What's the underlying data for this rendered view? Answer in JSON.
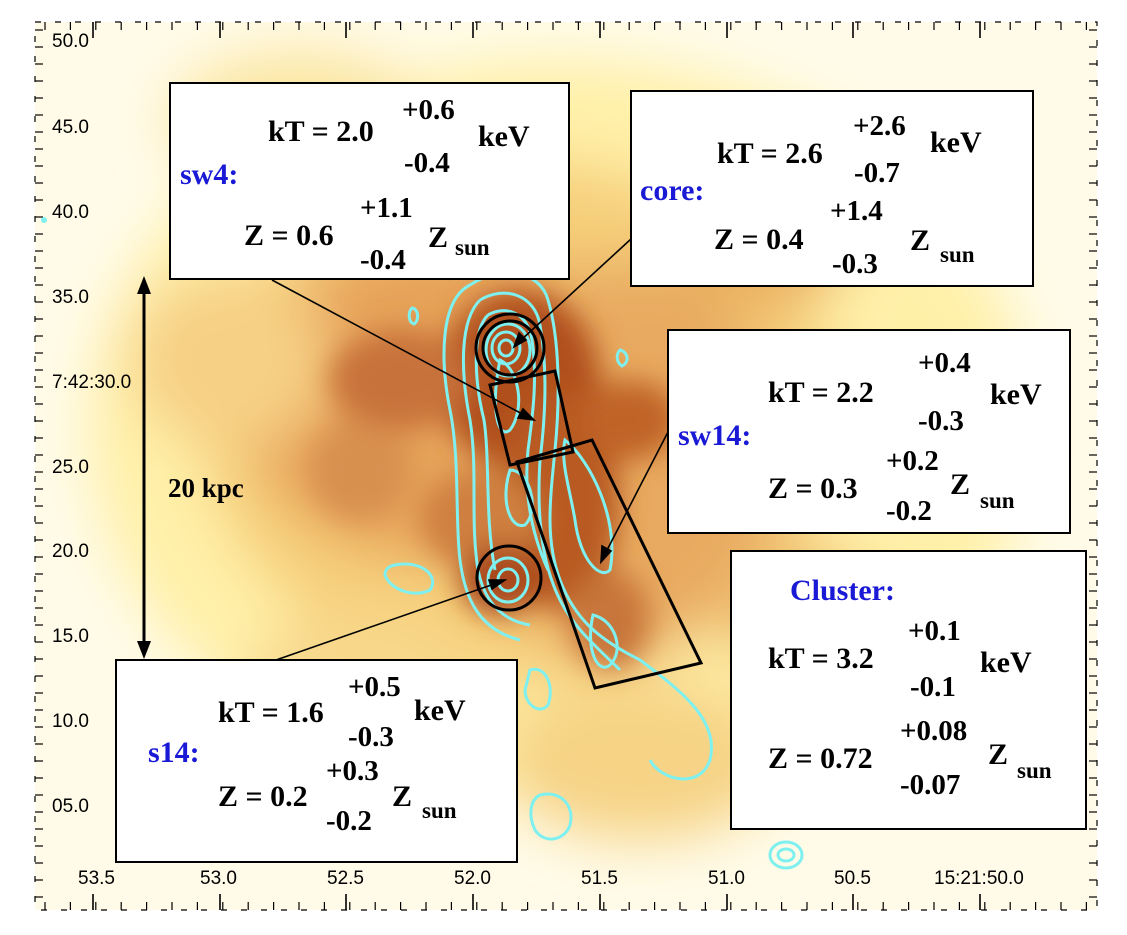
{
  "axes": {
    "y_ticks": [
      "50.0",
      "45.0",
      "40.0",
      "35.0",
      "7:42:30.0",
      "25.0",
      "20.0",
      "15.0",
      "10.0",
      "05.0"
    ],
    "x_ticks": [
      "53.5",
      "53.0",
      "52.5",
      "52.0",
      "51.5",
      "51.0",
      "50.5",
      "15:21:50.0"
    ]
  },
  "scale_bar": {
    "label": "20 kpc"
  },
  "colors": {
    "region_label": "#1a1ad6",
    "contour": "#7ff0f0",
    "frame": "#000000",
    "heat_low": "#fff2b0",
    "heat_mid": "#e8a050",
    "heat_high": "#9a3a0a"
  },
  "regions": {
    "sw4": {
      "label": "sw4:",
      "kt_prefix": "kT = 2.0",
      "kt_up": "+0.6",
      "kt_down": "-0.4",
      "kt_unit": "keV",
      "z_prefix": "Z = 0.6",
      "z_up": "+1.1",
      "z_down": "-0.4",
      "z_unit": "Z",
      "z_sub": "sun"
    },
    "core": {
      "label": "core:",
      "kt_prefix": "kT = 2.6",
      "kt_up": "+2.6",
      "kt_down": "-0.7",
      "kt_unit": "keV",
      "z_prefix": "Z = 0.4",
      "z_up": "+1.4",
      "z_down": "-0.3",
      "z_unit": "Z",
      "z_sub": "sun"
    },
    "sw14": {
      "label": "sw14:",
      "kt_prefix": "kT = 2.2",
      "kt_up": "+0.4",
      "kt_down": "-0.3",
      "kt_unit": "keV",
      "z_prefix": "Z = 0.3",
      "z_up": "+0.2",
      "z_down": "-0.2",
      "z_unit": "Z",
      "z_sub": "sun"
    },
    "cluster": {
      "label": "Cluster:",
      "kt_prefix": "kT = 3.2",
      "kt_up": "+0.1",
      "kt_down": "-0.1",
      "kt_unit": "keV",
      "z_prefix": "Z = 0.72",
      "z_up": "+0.08",
      "z_down": "-0.07",
      "z_unit": "Z",
      "z_sub": "sun"
    },
    "s14": {
      "label": "s14:",
      "kt_prefix": "kT = 1.6",
      "kt_up": "+0.5",
      "kt_down": "-0.3",
      "kt_unit": "keV",
      "z_prefix": "Z = 0.2",
      "z_up": "+0.3",
      "z_down": "-0.2",
      "z_unit": "Z",
      "z_sub": "sun"
    }
  }
}
